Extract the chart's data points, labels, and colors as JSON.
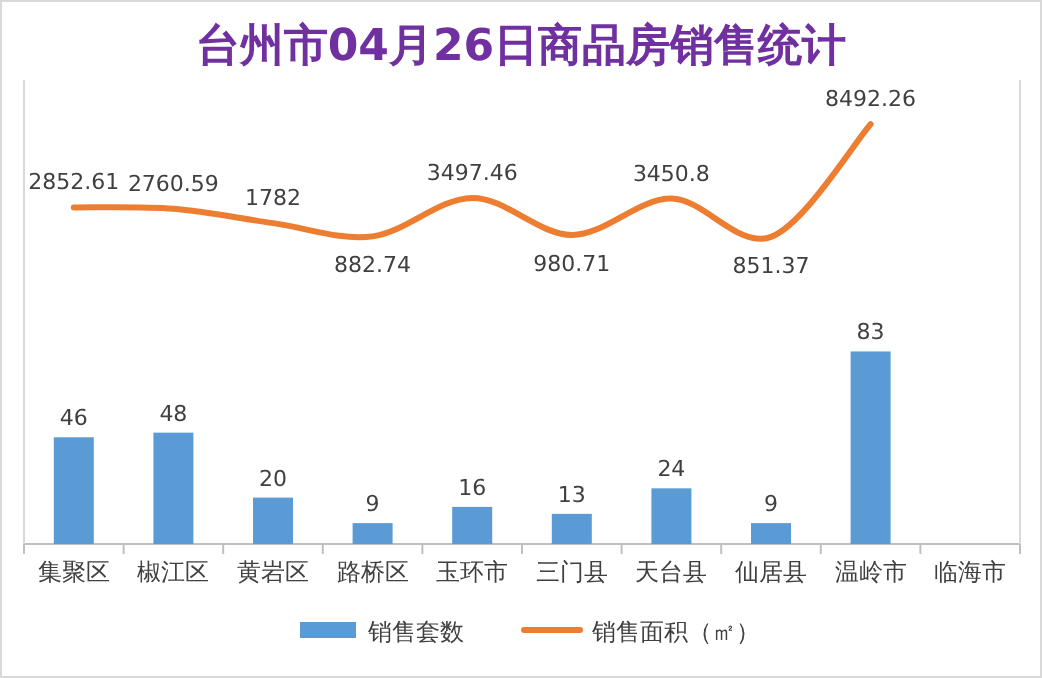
{
  "chart_data": {
    "type": "bar",
    "title": "台州市04月26日商品房销售统计",
    "categories": [
      "集聚区",
      "椒江区",
      "黄岩区",
      "路桥区",
      "玉环市",
      "三门县",
      "天台县",
      "仙居县",
      "温岭市",
      "临海市"
    ],
    "series": [
      {
        "name": "销售套数",
        "color": "#5b9bd5",
        "values": [
          46,
          48,
          20,
          9,
          16,
          13,
          24,
          9,
          83,
          null
        ]
      },
      {
        "name": "销售面积（㎡）",
        "color": "#ed7d31",
        "type": "line",
        "axis": "y2",
        "values": [
          2852.61,
          2760.59,
          1782,
          882.74,
          3497.46,
          980.71,
          3450.8,
          851.37,
          8492.26,
          null
        ]
      }
    ],
    "ylim": [
      0,
      200
    ],
    "y2lim": [
      -20000,
      11500
    ],
    "data_labels": true,
    "legend": "bottom",
    "marker": "none"
  }
}
